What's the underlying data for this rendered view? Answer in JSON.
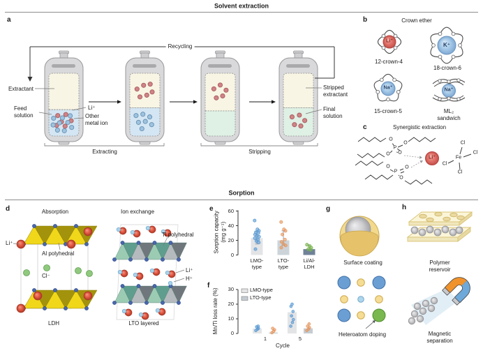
{
  "sections": {
    "top": "Solvent extraction",
    "bottom": "Sorption"
  },
  "colors": {
    "accent_red_ion": "#e2736a",
    "accent_blue_ion": "#a9cbe9",
    "scatter_blue": "#5b9bd3",
    "scatter_orange": "#e6965e",
    "scatter_green": "#78b44c",
    "bar_light": "#e3e4e6",
    "bar_mid": "#ccd4da",
    "bar_dark": "#6f8298",
    "vessel_gray": "#d9d9db",
    "cream_liquid": "#f8f5e4",
    "blue_solution": "#d4e6f3",
    "green_solution": "#dff0e4",
    "polyhedra_yellow": "#f1d71a",
    "polyhedra_teal": "#5f9e8e",
    "sphere_red": "#e15a45",
    "sphere_navy": "#4a67ae",
    "sphere_green": "#90c97e",
    "sphere_lightblue": "#aad4ea",
    "coating_yellow": "#f3d98c",
    "magnet_orange": "#f0932d",
    "magnet_blue": "#6fa9da",
    "particle_gray": "#cdcdd0"
  },
  "panel_a": {
    "letter": "a",
    "recycling": "Recycling",
    "extractant": "Extractant",
    "feed": "Feed\nsolution",
    "li": "Li⁺",
    "other": "Other\nmetal ion",
    "stripped": "Stripped\nextractant",
    "final": "Final\nsolution",
    "extracting": "Extracting",
    "stripping": "Stripping"
  },
  "panel_b": {
    "letter": "b",
    "title": "Crown ether",
    "items": [
      {
        "name": "12-crown-4",
        "ion": "Li⁺"
      },
      {
        "name": "18-crown-6",
        "ion": "K⁺"
      },
      {
        "name": "15-crown-5",
        "ion": "Na⁺"
      },
      {
        "name": "ML₂ sandwich",
        "ion": "Na⁺"
      }
    ]
  },
  "panel_c": {
    "letter": "c",
    "title": "Synergistic extraction",
    "li": "Li⁺",
    "atoms": {
      "o": "O",
      "p": "P",
      "fe": "Fe",
      "cl": "Cl"
    }
  },
  "panel_d": {
    "letter": "d",
    "absorption": "Absorption",
    "ion_exchange": "Ion exchange",
    "li": "Li⁺",
    "al": "Al polyhedral",
    "cl": "Cl⁻",
    "ldh": "LDH",
    "ti": "Ti polyhedral",
    "li2": "Li⁺",
    "h": "H⁺",
    "lto": "LTO layered"
  },
  "panel_e": {
    "letter": "e"
  },
  "panel_f": {
    "letter": "f"
  },
  "panel_g": {
    "letter": "g",
    "coating": "Surface coating",
    "doping": "Heteroatom doping"
  },
  "panel_h": {
    "letter": "h",
    "reservoir": "Polymer reservoir",
    "magnet": "Magnetic separation"
  },
  "chart_data": [
    {
      "type": "bar",
      "panel": "e",
      "categories": [
        "LMO-\ntype",
        "LTO-\ntype",
        "Li/Al-\nLDH"
      ],
      "values": [
        23,
        20,
        8
      ],
      "bar_colors": [
        "#e3e4e6",
        "#ccd4da",
        "#6f8298"
      ],
      "error_bars": [
        [
          15,
          32
        ],
        [
          13,
          33
        ],
        [
          6,
          14
        ]
      ],
      "scatter": [
        {
          "color": "#5b9bd3",
          "points": [
            47,
            35,
            33,
            31,
            30,
            28,
            26,
            25,
            23,
            21,
            19,
            17,
            8
          ]
        },
        {
          "color": "#e6965e",
          "points": [
            45,
            35,
            33,
            28,
            21,
            18,
            15,
            13,
            10
          ]
        },
        {
          "color": "#78b44c",
          "points": [
            14,
            12,
            10,
            8,
            7
          ]
        }
      ],
      "title": "",
      "xlabel": "",
      "ylabel": "Sorption capacity\n(mg g⁻¹)",
      "ylim": [
        0,
        60
      ],
      "yticks": [
        0,
        20,
        40,
        60
      ],
      "grid": false
    },
    {
      "type": "bar",
      "panel": "f",
      "categories": [
        "1",
        "5"
      ],
      "series": [
        {
          "name": "LMO-type",
          "color": "#e3e4e6",
          "values": [
            3.4,
            14.5
          ]
        },
        {
          "name": "LTO-type",
          "color": "#c4ccd3",
          "values": [
            0.6,
            3.5
          ]
        }
      ],
      "scatter": [
        {
          "series": "LMO-type",
          "category": "1",
          "color": "#5b9bd3",
          "points": [
            2,
            3,
            3.5,
            4.5,
            5
          ]
        },
        {
          "series": "LTO-type",
          "category": "1",
          "color": "#e6965e",
          "points": [
            0.5,
            1.5,
            2.5,
            3.5
          ]
        },
        {
          "series": "LMO-type",
          "category": "5",
          "color": "#5b9bd3",
          "points": [
            5,
            7.5,
            9.5,
            12,
            15,
            18.5,
            20
          ]
        },
        {
          "series": "LTO-type",
          "category": "5",
          "color": "#e6965e",
          "points": [
            2,
            3,
            4,
            5,
            6.5
          ]
        }
      ],
      "title": "",
      "xlabel": "Cycle",
      "ylabel": "Mn/Ti loss rate (%)",
      "ylim": [
        0,
        30
      ],
      "yticks": [
        0,
        10,
        20,
        30
      ],
      "legend_position": "top-left",
      "grid": false
    }
  ]
}
